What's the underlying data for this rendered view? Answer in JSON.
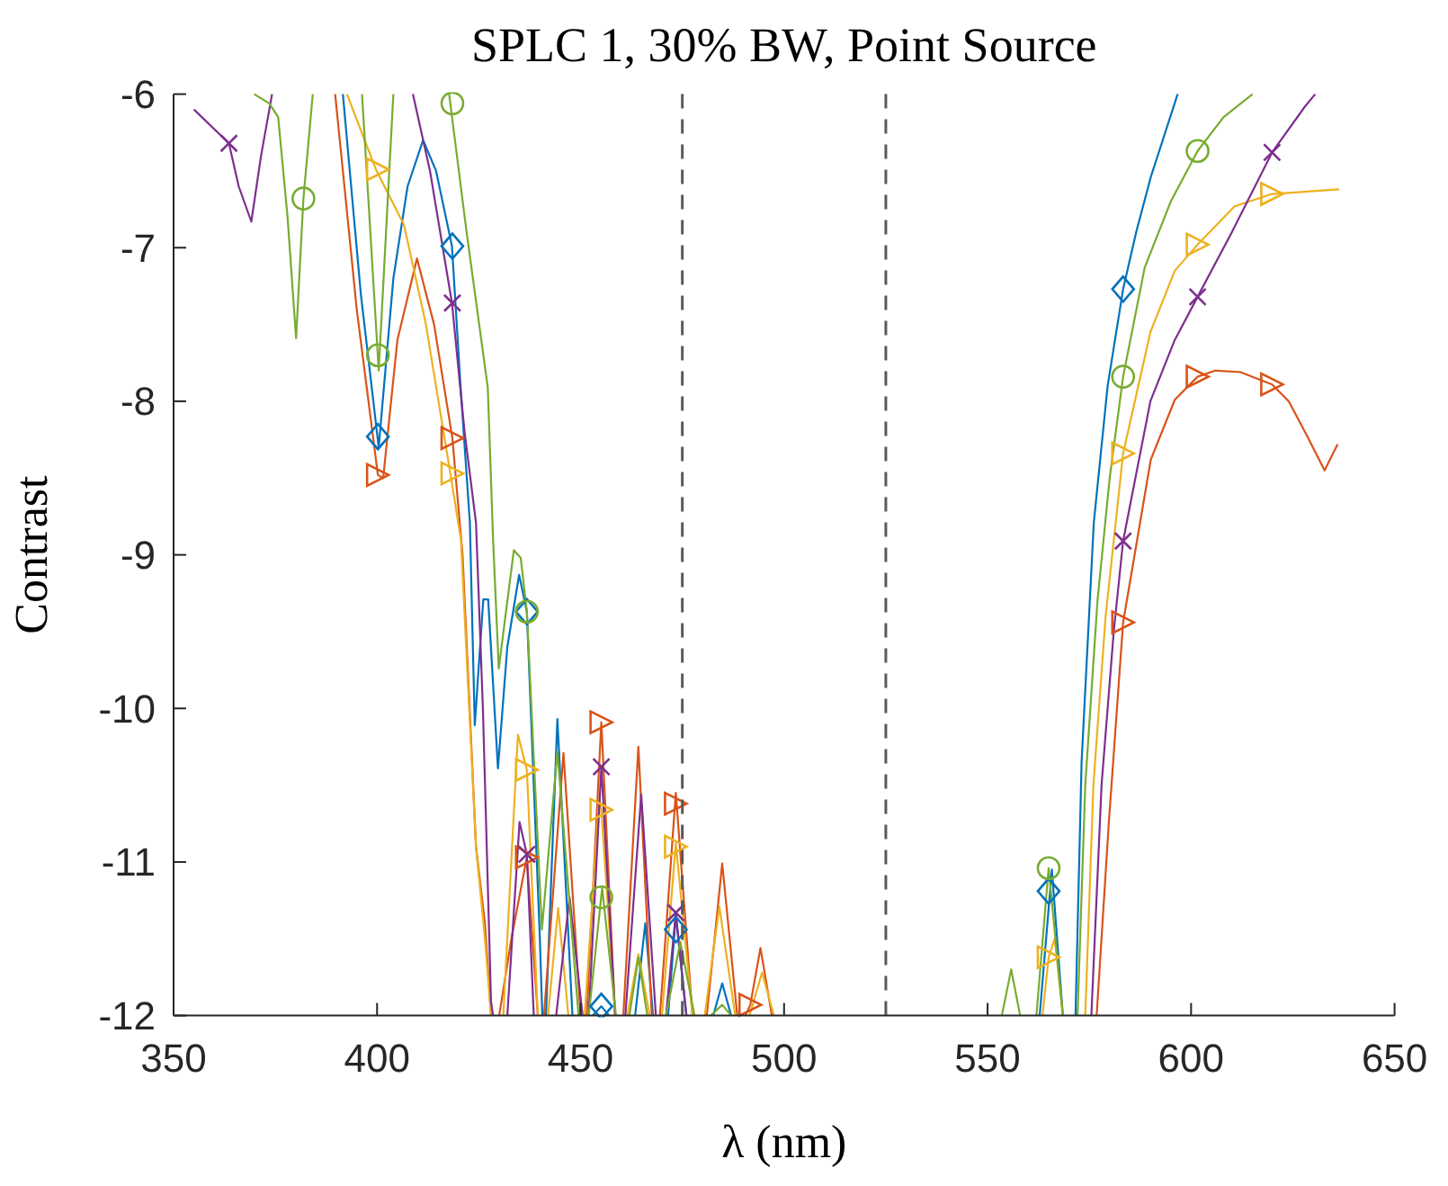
{
  "chart_data": {
    "type": "line",
    "title": "SPLC 1, 30% BW, Point Source",
    "xlabel": "λ (nm)",
    "ylabel": "Contrast",
    "xlim": [
      350,
      650
    ],
    "xticks": [
      350,
      400,
      450,
      500,
      550,
      600,
      650
    ],
    "ylim": [
      -12,
      -6
    ],
    "yticks": [
      -12,
      -11,
      -10,
      -9,
      -8,
      -7,
      -6
    ],
    "grid": false,
    "line_style": "solid",
    "marker": "none",
    "ref_lines": [
      {
        "axis": "x",
        "value": 475,
        "color": "#5a5a5a",
        "line_style": "dashed"
      },
      {
        "axis": "x",
        "value": 525,
        "color": "#5a5a5a",
        "line_style": "dashed"
      }
    ],
    "series": [
      {
        "color": "#0072bd",
        "x": [
          391.6,
          396,
          400.4,
          404,
          407.5,
          411.3,
          414.5,
          418.4,
          420.5,
          422.8,
          424,
          426.1,
          427.3,
          429.7,
          432,
          434.9,
          436.8,
          440,
          440.6,
          null,
          441.5,
          444.3,
          448,
          null,
          453,
          455.1,
          457,
          null,
          463.4,
          465.9,
          467.8,
          null,
          471.5,
          473.4,
          476,
          null,
          482.6,
          484.8,
          487,
          null,
          562.8,
          565.8,
          568.5,
          null,
          571.6,
          573.1,
          576.1,
          579.5,
          583.3,
          586.5,
          590.1,
          596.7
        ],
        "values": [
          -6,
          -7.3,
          -8.3,
          -7.2,
          -6.6,
          -6.3,
          -6.5,
          -6.99,
          -7.9,
          -8.79,
          -10.11,
          -9.29,
          -9.29,
          -10.39,
          -9.6,
          -9.13,
          -9.37,
          -11.5,
          -12,
          null,
          -12,
          -10.07,
          -12,
          null,
          -12,
          -11.94,
          -12,
          null,
          -12,
          -11.4,
          -12,
          null,
          -12,
          -11.35,
          -12,
          null,
          -12,
          -11.79,
          -12,
          null,
          -12,
          -11.05,
          -12,
          null,
          -12,
          -10.35,
          -8.79,
          -7.9,
          -7.27,
          -6.9,
          -6.54,
          -6
        ]
      },
      {
        "color": "#d95319",
        "x": [
          389.7,
          395,
          400.2,
          401.5,
          405,
          409.8,
          414,
          418.5,
          421,
          424.3,
          426.5,
          428,
          null,
          430,
          433,
          436.8,
          439.5,
          null,
          441,
          445.8,
          450,
          null,
          451.5,
          455.1,
          458.5,
          null,
          460.5,
          464.2,
          467.5,
          null,
          469.5,
          473.4,
          477.5,
          null,
          481,
          484.8,
          488.5,
          null,
          490.5,
          491.7,
          494.2,
          497,
          null,
          576.8,
          579.8,
          583.3,
          590.1,
          596,
          601.6,
          606,
          612.1,
          619.9,
          624,
          628.4,
          632.8,
          636
        ],
        "values": [
          -6,
          -7.4,
          -8.48,
          -8.5,
          -7.6,
          -7.07,
          -7.5,
          -8.24,
          -9,
          -10.9,
          -11.4,
          -12,
          null,
          -12,
          -11.5,
          -10.97,
          -12,
          null,
          -12,
          -10.29,
          -12,
          null,
          -12,
          -10.09,
          -12,
          null,
          -12,
          -10.25,
          -12,
          null,
          -12,
          -10.55,
          -12,
          null,
          -12,
          -11.01,
          -12,
          null,
          -12,
          -11.93,
          -11.56,
          -12,
          null,
          -12,
          -10.74,
          -9.44,
          -8.38,
          -7.99,
          -7.84,
          -7.8,
          -7.81,
          -7.89,
          -8.0,
          -8.22,
          -8.45,
          -8.28
        ]
      },
      {
        "color": "#edb120",
        "x": [
          392.6,
          399.7,
          406.6,
          412,
          418,
          420.6,
          424.3,
          426.5,
          428,
          null,
          431,
          434.6,
          436.8,
          439.5,
          null,
          442,
          444.5,
          447,
          null,
          451,
          454.6,
          455.1,
          458.5,
          null,
          461.5,
          464.2,
          467,
          null,
          470,
          473.4,
          477.5,
          null,
          480.5,
          484.1,
          488,
          null,
          491.5,
          494.6,
          497.5,
          null,
          563.5,
          565,
          566.5,
          568.5,
          null,
          574,
          576,
          579,
          583.3,
          590,
          596,
          601.6,
          610.7,
          619.9,
          636.4
        ],
        "values": [
          -6,
          -6.49,
          -6.85,
          -7.5,
          -8.47,
          -8.9,
          -10.9,
          -11.5,
          -12,
          null,
          -12,
          -10.17,
          -10.4,
          -12,
          null,
          -12,
          -11.3,
          -12,
          null,
          -12,
          -10.58,
          -10.66,
          -12,
          null,
          -12,
          -11.6,
          -12,
          null,
          -12,
          -10.88,
          -12,
          null,
          -12,
          -11.29,
          -12,
          null,
          -12,
          -11.72,
          -12,
          null,
          -12,
          -11.62,
          -11.5,
          -12,
          null,
          -12,
          -10.5,
          -9.4,
          -8.34,
          -7.55,
          -7.15,
          -6.98,
          -6.73,
          -6.65,
          -6.62
        ]
      },
      {
        "color": "#7e2f8e",
        "x": [
          355,
          363.6,
          366,
          369.1,
          371.5,
          374.2,
          null,
          408.8,
          413,
          418.4,
          421.5,
          424.3,
          426,
          428,
          428.5,
          null,
          432,
          435,
          436.8,
          438.5,
          null,
          444,
          447.3,
          450.5,
          null,
          452,
          455.1,
          458.5,
          null,
          461,
          464.9,
          468.5,
          null,
          471,
          473.4,
          476,
          null,
          575.5,
          578,
          581,
          583.3,
          590,
          596,
          601.6,
          610,
          619.9,
          628,
          630.5
        ],
        "values": [
          -6.1,
          -6.32,
          -6.6,
          -6.83,
          -6.4,
          -6,
          null,
          -6,
          -6.5,
          -7.36,
          -8.2,
          -8.79,
          -10,
          -11.91,
          -12,
          null,
          -12,
          -10.74,
          -10.95,
          -12,
          null,
          -12,
          -11.23,
          -12,
          null,
          -12,
          -10.38,
          -12,
          null,
          -12,
          -10.56,
          -12,
          null,
          -12,
          -11.33,
          -12,
          null,
          -12,
          -10.5,
          -9.5,
          -8.91,
          -8.0,
          -7.6,
          -7.32,
          -6.9,
          -6.38,
          -6.08,
          -6
        ]
      },
      {
        "color": "#77ac30",
        "x": [
          369.8,
          373.5,
          375.7,
          378,
          380.1,
          381.9,
          384.2,
          null,
          396.3,
          400.4,
          404,
          null,
          417.7,
          422,
          427.2,
          428.5,
          429.9,
          433.6,
          435.3,
          436.8,
          440.5,
          444.3,
          449.5,
          null,
          452,
          455.3,
          458.7,
          null,
          462,
          464.2,
          466.4,
          null,
          471,
          474.5,
          478,
          null,
          482,
          484.8,
          487,
          null,
          553.5,
          555.8,
          558,
          null,
          562,
          565,
          568.5,
          null,
          572.1,
          574,
          577,
          580,
          583.3,
          588.6,
          595,
          601.6,
          608,
          615.1
        ],
        "values": [
          -6,
          -6.06,
          -6.15,
          -6.8,
          -7.59,
          -6.68,
          -6,
          null,
          -6,
          -7.8,
          -6,
          null,
          -6,
          -6.9,
          -7.91,
          -8.9,
          -9.74,
          -8.97,
          -9.02,
          -9.37,
          -11.44,
          -10.28,
          -12,
          null,
          -12,
          -11.17,
          -12,
          null,
          -12,
          -11.62,
          -12,
          null,
          -12,
          -11.52,
          -12,
          null,
          -12,
          -11.93,
          -12,
          null,
          -12,
          -11.7,
          -12,
          null,
          -12,
          -11.04,
          -12,
          null,
          -12,
          -10.5,
          -9.3,
          -8.5,
          -7.84,
          -7.13,
          -6.7,
          -6.37,
          -6.15,
          -6
        ]
      },
      {
        "type": "scatter",
        "marker": "diamond",
        "color": "#0072bd",
        "x": [
          400.2,
          418.5,
          436.8,
          455.1,
          473.4,
          565,
          583.3
        ],
        "values": [
          -8.23,
          -6.99,
          -9.37,
          -11.94,
          -11.44,
          -11.19,
          -7.27
        ]
      },
      {
        "type": "scatter",
        "marker": "triangle",
        "color": "#d95319",
        "x": [
          400.2,
          418.5,
          436.8,
          455.1,
          473.4,
          491.7,
          583.3,
          601.6,
          619.9
        ],
        "values": [
          -8.48,
          -8.24,
          -10.97,
          -10.09,
          -10.62,
          -11.93,
          -9.44,
          -7.84,
          -7.89
        ]
      },
      {
        "type": "scatter",
        "marker": "triangle",
        "color": "#edb120",
        "x": [
          400.2,
          418.5,
          436.8,
          455.1,
          473.4,
          565,
          583.3,
          601.6,
          619.9
        ],
        "values": [
          -6.49,
          -8.47,
          -10.4,
          -10.66,
          -10.9,
          -11.62,
          -8.34,
          -6.98,
          -6.65
        ]
      },
      {
        "type": "scatter",
        "marker": "cross",
        "color": "#7e2f8e",
        "x": [
          363.6,
          418.5,
          436.8,
          455.1,
          473.4,
          583.3,
          601.6,
          619.9
        ],
        "values": [
          -6.32,
          -7.36,
          -10.95,
          -10.38,
          -11.33,
          -8.91,
          -7.32,
          -6.38
        ]
      },
      {
        "type": "scatter",
        "marker": "circle",
        "color": "#77ac30",
        "x": [
          381.9,
          400.2,
          418.5,
          436.8,
          455.1,
          565,
          583.3,
          601.6
        ],
        "values": [
          -6.68,
          -7.7,
          -6.06,
          -9.37,
          -11.23,
          -11.04,
          -7.84,
          -6.37
        ]
      }
    ]
  }
}
